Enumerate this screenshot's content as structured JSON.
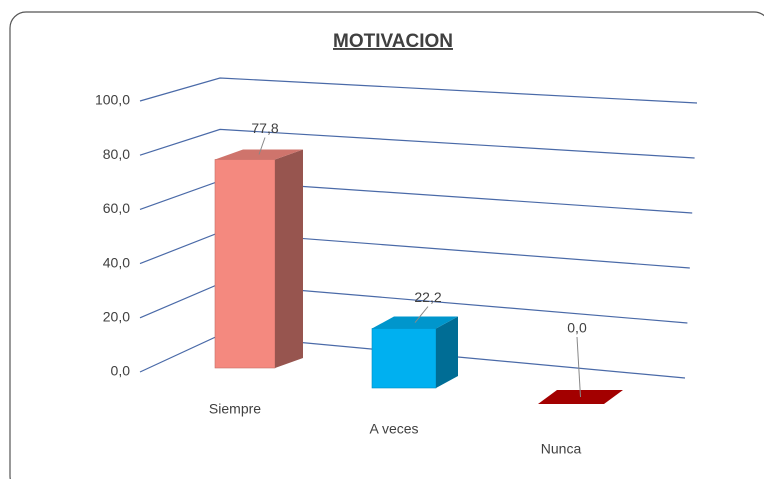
{
  "chart_data": {
    "type": "bar",
    "title": "MOTIVACION",
    "categories": [
      "Siempre",
      "A veces",
      "Nunca"
    ],
    "values": [
      77.8,
      22.2,
      0.0
    ],
    "value_labels": [
      "77,8",
      "22,2",
      "0,0"
    ],
    "colors": [
      "#f4897f",
      "#00b0f0",
      "#c00000"
    ],
    "ylim": [
      0,
      100
    ],
    "yticks": [
      {
        "value": 0,
        "label": "0,0"
      },
      {
        "value": 20,
        "label": "20,0"
      },
      {
        "value": 40,
        "label": "40,0"
      },
      {
        "value": 60,
        "label": "60,0"
      },
      {
        "value": 80,
        "label": "80,0"
      },
      {
        "value": 100,
        "label": "100,0"
      }
    ],
    "grid": true
  }
}
